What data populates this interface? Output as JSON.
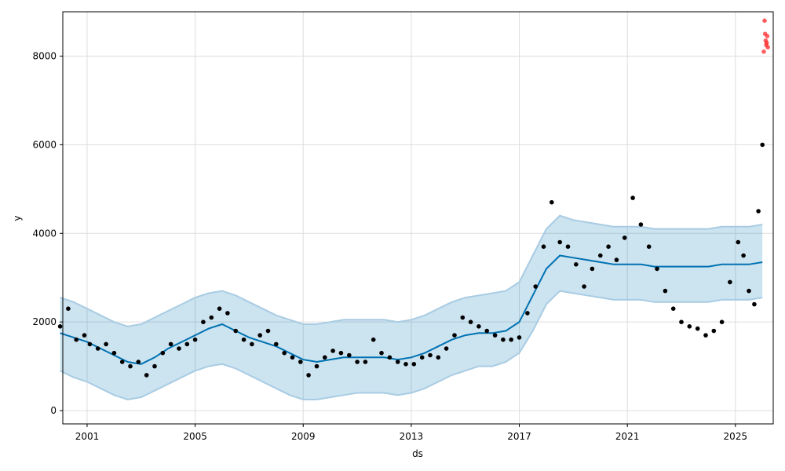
{
  "chart_data": {
    "type": "line",
    "title": "",
    "xlabel": "ds",
    "ylabel": "y",
    "xlim": [
      2000.1,
      2026.4
    ],
    "ylim": [
      -300,
      9000
    ],
    "grid": true,
    "x_ticks": [
      2001,
      2005,
      2009,
      2013,
      2017,
      2021,
      2025
    ],
    "x_tick_labels": [
      "2001",
      "2005",
      "2009",
      "2013",
      "2017",
      "2021",
      "2025"
    ],
    "y_ticks": [
      0,
      2000,
      4000,
      6000,
      8000
    ],
    "y_tick_labels": [
      "0",
      "2000",
      "4000",
      "6000",
      "8000"
    ],
    "colors": {
      "forecast": "#0072B2",
      "band_fill": "#0072B2",
      "band_edge": "#a8cce3",
      "points": "#000000",
      "future_points": "#ff2a2a",
      "grid": "#dddddd"
    },
    "series": [
      {
        "kind": "forecast",
        "x": [
          2000.0,
          2000.5,
          2001.0,
          2001.5,
          2002.0,
          2002.5,
          2003.0,
          2003.5,
          2004.0,
          2004.5,
          2005.0,
          2005.5,
          2006.0,
          2006.5,
          2007.0,
          2007.5,
          2008.0,
          2008.5,
          2009.0,
          2009.5,
          2010.0,
          2010.5,
          2011.0,
          2011.5,
          2012.0,
          2012.5,
          2013.0,
          2013.5,
          2014.0,
          2014.5,
          2015.0,
          2015.5,
          2016.0,
          2016.5,
          2017.0,
          2017.5,
          2018.0,
          2018.5,
          2019.0,
          2019.5,
          2020.0,
          2020.5,
          2021.0,
          2021.5,
          2022.0,
          2022.5,
          2023.0,
          2023.5,
          2024.0,
          2024.5,
          2025.0,
          2025.5,
          2026.0
        ],
        "yhat": [
          1750,
          1650,
          1550,
          1400,
          1250,
          1100,
          1050,
          1200,
          1400,
          1550,
          1700,
          1850,
          1950,
          1800,
          1650,
          1550,
          1450,
          1300,
          1150,
          1100,
          1150,
          1200,
          1200,
          1200,
          1200,
          1150,
          1200,
          1300,
          1450,
          1600,
          1700,
          1750,
          1750,
          1800,
          2000,
          2600,
          3200,
          3500,
          3450,
          3400,
          3350,
          3300,
          3300,
          3300,
          3250,
          3250,
          3250,
          3250,
          3250,
          3300,
          3300,
          3300,
          3350
        ],
        "yhat_lower": [
          900,
          750,
          650,
          500,
          350,
          250,
          300,
          450,
          600,
          750,
          900,
          1000,
          1050,
          950,
          800,
          650,
          500,
          350,
          250,
          250,
          300,
          350,
          400,
          400,
          400,
          350,
          400,
          500,
          650,
          800,
          900,
          1000,
          1000,
          1100,
          1300,
          1800,
          2400,
          2700,
          2650,
          2600,
          2550,
          2500,
          2500,
          2500,
          2450,
          2450,
          2450,
          2450,
          2450,
          2500,
          2500,
          2500,
          2550
        ],
        "yhat_upper": [
          2550,
          2450,
          2300,
          2150,
          2000,
          1900,
          1950,
          2100,
          2250,
          2400,
          2550,
          2650,
          2700,
          2600,
          2450,
          2300,
          2150,
          2050,
          1950,
          1950,
          2000,
          2050,
          2050,
          2050,
          2050,
          2000,
          2050,
          2150,
          2300,
          2450,
          2550,
          2600,
          2650,
          2700,
          2900,
          3500,
          4100,
          4400,
          4300,
          4250,
          4200,
          4150,
          4150,
          4150,
          4100,
          4100,
          4100,
          4100,
          4100,
          4150,
          4150,
          4150,
          4200
        ]
      },
      {
        "kind": "observed",
        "x": [
          2000.0,
          2000.3,
          2000.6,
          2000.9,
          2001.1,
          2001.4,
          2001.7,
          2002.0,
          2002.3,
          2002.6,
          2002.9,
          2003.2,
          2003.5,
          2003.8,
          2004.1,
          2004.4,
          2004.7,
          2005.0,
          2005.3,
          2005.6,
          2005.9,
          2006.2,
          2006.5,
          2006.8,
          2007.1,
          2007.4,
          2007.7,
          2008.0,
          2008.3,
          2008.6,
          2008.9,
          2009.2,
          2009.5,
          2009.8,
          2010.1,
          2010.4,
          2010.7,
          2011.0,
          2011.3,
          2011.6,
          2011.9,
          2012.2,
          2012.5,
          2012.8,
          2013.1,
          2013.4,
          2013.7,
          2014.0,
          2014.3,
          2014.6,
          2014.9,
          2015.2,
          2015.5,
          2015.8,
          2016.1,
          2016.4,
          2016.7,
          2017.0,
          2017.3,
          2017.6,
          2017.9,
          2018.2,
          2018.5,
          2018.8,
          2019.1,
          2019.4,
          2019.7,
          2020.0,
          2020.3,
          2020.6,
          2020.9,
          2021.2,
          2021.5,
          2021.8,
          2022.1,
          2022.4,
          2022.7,
          2023.0,
          2023.3,
          2023.6,
          2023.9,
          2024.2,
          2024.5,
          2024.8,
          2025.1,
          2025.3,
          2025.5,
          2025.7,
          2025.85,
          2026.0
        ],
        "y": [
          1900,
          2300,
          1600,
          1700,
          1500,
          1400,
          1500,
          1300,
          1100,
          1000,
          1100,
          800,
          1000,
          1300,
          1500,
          1400,
          1500,
          1600,
          2000,
          2100,
          2300,
          2200,
          1800,
          1600,
          1500,
          1700,
          1800,
          1500,
          1300,
          1200,
          1100,
          800,
          1000,
          1200,
          1350,
          1300,
          1250,
          1100,
          1100,
          1600,
          1300,
          1200,
          1100,
          1050,
          1050,
          1200,
          1250,
          1200,
          1400,
          1700,
          2100,
          2000,
          1900,
          1800,
          1700,
          1600,
          1600,
          1650,
          2200,
          2800,
          3700,
          4700,
          3800,
          3700,
          3300,
          2800,
          3200,
          3500,
          3700,
          3400,
          3900,
          4800,
          4200,
          3700,
          3200,
          2700,
          2300,
          2000,
          1900,
          1850,
          1700,
          1800,
          2000,
          2900,
          3800,
          3500,
          2700,
          2400,
          4500,
          6000
        ]
      },
      {
        "kind": "future",
        "x": [
          2026.05,
          2026.08,
          2026.1,
          2026.12,
          2026.14,
          2026.16,
          2026.18,
          2026.2
        ],
        "y": [
          8100,
          8800,
          8500,
          8350,
          8250,
          8300,
          8450,
          8200
        ]
      }
    ]
  }
}
